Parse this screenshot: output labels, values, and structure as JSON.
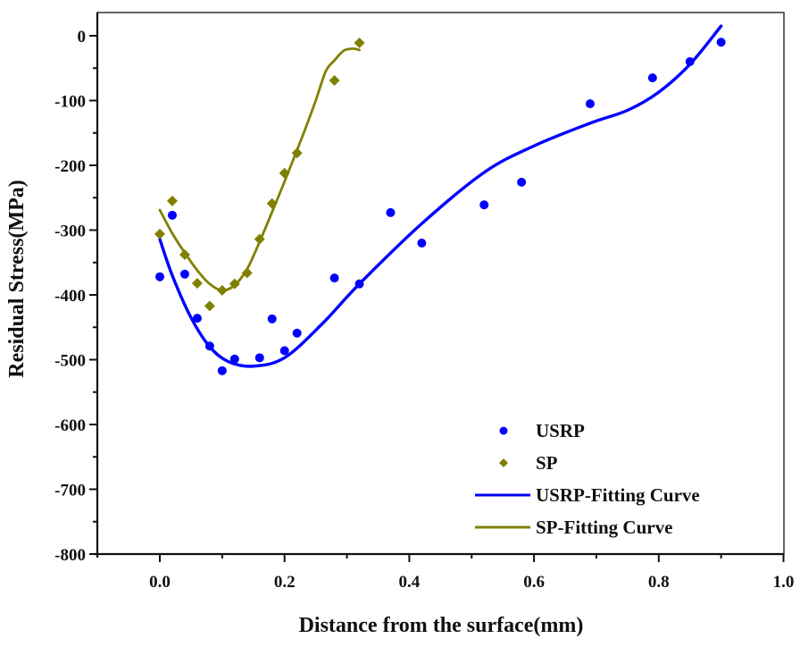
{
  "chart_data": {
    "type": "scatter",
    "title": "",
    "xlabel": "Distance from the surface(mm)",
    "ylabel": "Residual Stress(MPa)",
    "xlim": [
      -0.1,
      1.0
    ],
    "ylim": [
      -800,
      50
    ],
    "xticks": [
      0.0,
      0.2,
      0.4,
      0.6,
      0.8,
      1.0
    ],
    "xtick_labels": [
      "0.0",
      "0.2",
      "0.4",
      "0.6",
      "0.8",
      "1.0"
    ],
    "xminor": [
      0.1,
      0.3,
      0.5,
      0.7,
      0.9
    ],
    "yticks": [
      0,
      -100,
      -200,
      -300,
      -400,
      -500,
      -600,
      -700,
      -800
    ],
    "ytick_labels": [
      "0",
      "-100",
      "-200",
      "-300",
      "-400",
      "-500",
      "-600",
      "-700",
      "-800"
    ],
    "yminor": [
      -50,
      -150,
      -250,
      -350,
      -450,
      -550,
      -650,
      -750
    ],
    "grid": false,
    "legend_position": "bottom-right",
    "series": [
      {
        "name": "USRP",
        "kind": "scatter",
        "marker": "circle",
        "color": "#0000ff",
        "x": [
          0.0,
          0.02,
          0.04,
          0.06,
          0.08,
          0.1,
          0.12,
          0.16,
          0.18,
          0.2,
          0.22,
          0.28,
          0.32,
          0.37,
          0.42,
          0.52,
          0.58,
          0.69,
          0.79,
          0.85,
          0.9
        ],
        "y": [
          -372,
          -277,
          -368,
          -436,
          -479,
          -517,
          -499,
          -497,
          -437,
          -486,
          -459,
          -374,
          -383,
          -273,
          -320,
          -261,
          -226,
          -105,
          -65,
          -40,
          -10
        ]
      },
      {
        "name": "SP",
        "kind": "scatter",
        "marker": "diamond",
        "color": "#808000",
        "x": [
          0.0,
          0.02,
          0.04,
          0.06,
          0.08,
          0.1,
          0.12,
          0.14,
          0.16,
          0.18,
          0.2,
          0.22,
          0.28,
          0.32
        ],
        "y": [
          -306,
          -255,
          -338,
          -382,
          -417,
          -393,
          -383,
          -366,
          -314,
          -259,
          -212,
          -181,
          -69,
          -11
        ]
      },
      {
        "name": "USRP-Fitting Curve",
        "kind": "line",
        "color": "#0000ff",
        "x": [
          0.0,
          0.02,
          0.05,
          0.08,
          0.11,
          0.15,
          0.2,
          0.26,
          0.32,
          0.42,
          0.52,
          0.6,
          0.69,
          0.75,
          0.8,
          0.85,
          0.9
        ],
        "y": [
          -314,
          -370,
          -435,
          -480,
          -503,
          -510,
          -497,
          -445,
          -383,
          -290,
          -211,
          -170,
          -135,
          -115,
          -87,
          -44,
          15
        ]
      },
      {
        "name": "SP-Fitting Curve",
        "kind": "line",
        "color": "#808000",
        "x": [
          0.0,
          0.02,
          0.04,
          0.06,
          0.08,
          0.1,
          0.12,
          0.14,
          0.16,
          0.18,
          0.2,
          0.23,
          0.25,
          0.266,
          0.28,
          0.295,
          0.31,
          0.32
        ],
        "y": [
          -269,
          -305,
          -335,
          -362,
          -383,
          -393,
          -385,
          -360,
          -318,
          -272,
          -225,
          -152,
          -100,
          -55,
          -38,
          -23,
          -20,
          -22
        ]
      }
    ]
  }
}
